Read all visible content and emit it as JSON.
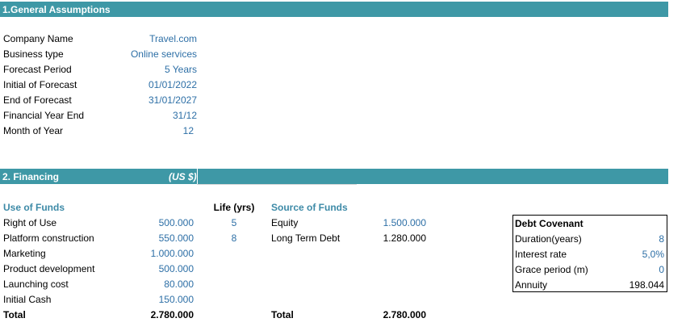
{
  "general": {
    "header": "1.General Assumptions",
    "rows": [
      {
        "label": "Company Name",
        "value": "Travel.com"
      },
      {
        "label": "Business type",
        "value": "Online services"
      },
      {
        "label": "Forecast Period",
        "value": "5 Years"
      },
      {
        "label": "Initial of Forecast",
        "value": "01/01/2022"
      },
      {
        "label": "End of Forecast",
        "value": "31/01/2027"
      },
      {
        "label": "Financial Year End",
        "value": "31/12"
      },
      {
        "label": "Month of Year",
        "value": "12"
      }
    ]
  },
  "financing": {
    "header": "2. Financing",
    "currency": "(US $)",
    "use_title": "Use of Funds",
    "life_title": "Life (yrs)",
    "source_title": "Source of Funds",
    "uses": [
      {
        "label": "Right of Use",
        "value": "500.000",
        "life": "5"
      },
      {
        "label": "Platform construction",
        "value": "550.000",
        "life": "8"
      },
      {
        "label": "Marketing",
        "value": "1.000.000",
        "life": ""
      },
      {
        "label": "Product development",
        "value": "500.000",
        "life": ""
      },
      {
        "label": "Launching cost",
        "value": "80.000",
        "life": ""
      },
      {
        "label": "Initial Cash",
        "value": "150.000",
        "life": ""
      }
    ],
    "uses_total": {
      "label": "Total",
      "value": "2.780.000"
    },
    "sources": [
      {
        "label": "Equity",
        "value": "1.500.000"
      },
      {
        "label": "Long Term Debt",
        "value": "1.280.000"
      }
    ],
    "sources_total": {
      "label": "Total",
      "value": "2.780.000"
    }
  },
  "debt_covenant": {
    "title": "Debt Covenant",
    "rows": [
      {
        "label": "Duration(years)",
        "value": "8"
      },
      {
        "label": "Interest rate",
        "value": "5,0%"
      },
      {
        "label": "Grace period (m)",
        "value": "0"
      },
      {
        "label": "Annuity",
        "value": "198.044"
      }
    ]
  },
  "colors": {
    "header_band": "#3e98a6",
    "input_blue": "#2d6fa6",
    "section_teal": "#3d8aa7"
  }
}
